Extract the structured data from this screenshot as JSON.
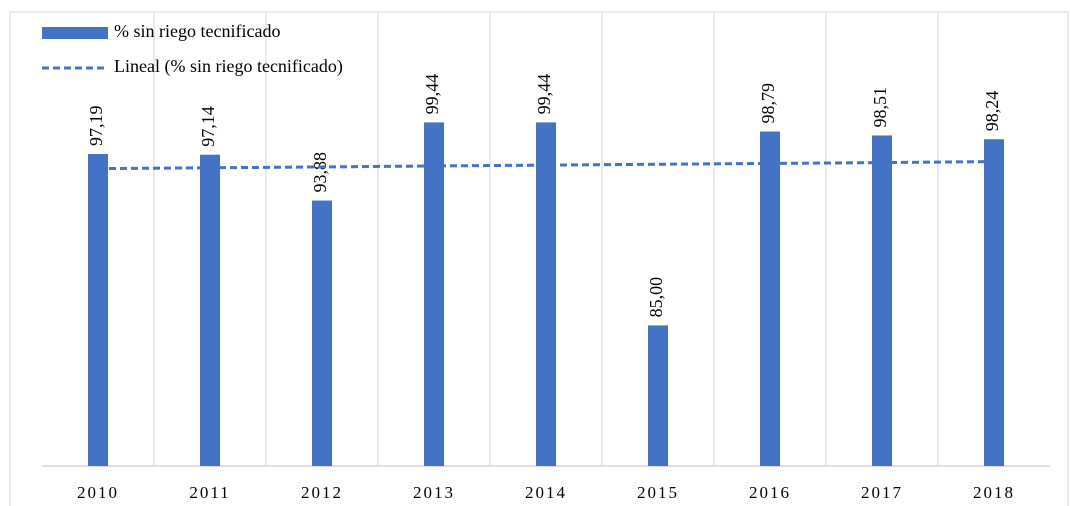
{
  "chart_data": {
    "type": "bar",
    "categories": [
      "2010",
      "2011",
      "2012",
      "2013",
      "2014",
      "2015",
      "2016",
      "2017",
      "2018"
    ],
    "series": [
      {
        "name": "% sin riego tecnificado",
        "type": "bar",
        "color": "#4472c4",
        "values": [
          97.19,
          97.14,
          93.88,
          99.44,
          99.44,
          85.0,
          98.79,
          98.51,
          98.24
        ],
        "value_labels": [
          "97,19",
          "97,14",
          "93,88",
          "99,44",
          "99,44",
          "85,00",
          "98,79",
          "98,51",
          "98,24"
        ]
      },
      {
        "name": "Lineal (% sin riego tecnificado)",
        "type": "line",
        "color": "#4472c4",
        "dashed": true,
        "values": [
          96.15,
          96.21,
          96.27,
          96.34,
          96.4,
          96.46,
          96.52,
          96.58,
          96.65
        ]
      }
    ],
    "ylim": [
      75,
      100
    ],
    "grid": "vertical",
    "legend": "top-left"
  }
}
